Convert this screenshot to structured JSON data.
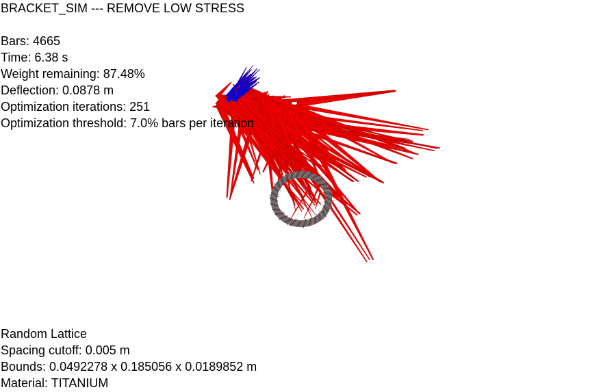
{
  "window": {
    "title": "BRACKET_SIM --- REMOVE LOW STRESS"
  },
  "stats": {
    "bars": "Bars: 4665",
    "time": "Time: 6.38 s",
    "weight": "Weight remaining: 87.48%",
    "deflection": "Deflection: 0.0878 m",
    "iterations": "Optimization iterations: 251",
    "threshold": "Optimization threshold: 7.0% bars per iteration"
  },
  "lattice": {
    "type": "Random Lattice",
    "spacing": "Spacing cutoff: 0.005 m",
    "bounds": "Bounds: 0.0492278 x 0.185056 x 0.0189852 m",
    "material": "Material: TITANIUM"
  },
  "colors": {
    "background": "#ffffff",
    "bar_high_stress": "#ee0000",
    "bar_low_stress": "#0000ee",
    "mount_ring": "#6e6060"
  }
}
